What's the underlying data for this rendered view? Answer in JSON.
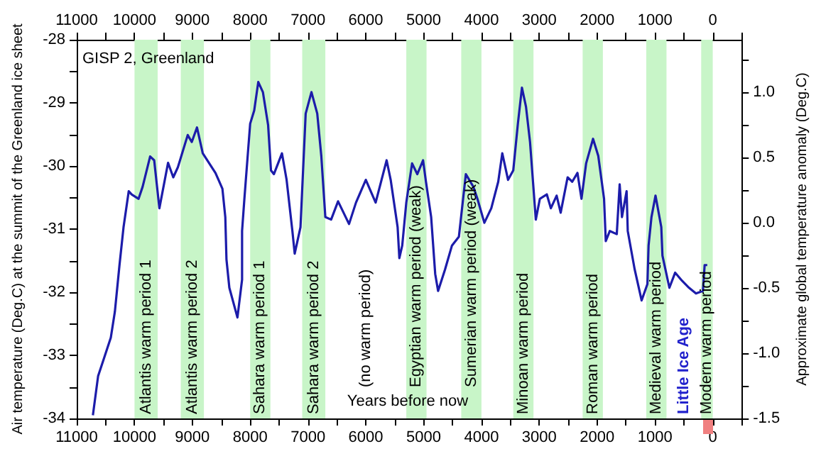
{
  "chart_data": {
    "type": "line",
    "xlabel": "Years before now",
    "ylabel": "Air temperature (Deg.C) at the summit of the Greenland ice sheet",
    "y2label": "Approximate global temperature anomaly (Deg.C)",
    "marker": "none",
    "color": "#1c1caa",
    "x": [
      10720,
      10630,
      10410,
      10340,
      10260,
      10190,
      10100,
      10050,
      9930,
      9860,
      9730,
      9660,
      9570,
      9420,
      9330,
      9250,
      9080,
      9010,
      8920,
      8820,
      8600,
      8480,
      8430,
      8410,
      8360,
      8220,
      8140,
      8140,
      8100,
      8000,
      7930,
      7860,
      7780,
      7690,
      7640,
      7590,
      7450,
      7370,
      7270,
      7230,
      7130,
      7040,
      6940,
      6840,
      6770,
      6700,
      6600,
      6480,
      6290,
      6170,
      6000,
      5830,
      5640,
      5570,
      5450,
      5420,
      5370,
      5300,
      5200,
      5110,
      5010,
      4960,
      4870,
      4800,
      4750,
      4630,
      4510,
      4390,
      4270,
      4140,
      4070,
      3950,
      3830,
      3710,
      3640,
      3540,
      3450,
      3370,
      3300,
      3230,
      3160,
      3060,
      2990,
      2870,
      2800,
      2700,
      2630,
      2510,
      2430,
      2340,
      2270,
      2190,
      2070,
      1980,
      1880,
      1850,
      1780,
      1660,
      1610,
      1570,
      1490,
      1470,
      1350,
      1230,
      1130,
      1110,
      1060,
      990,
      890,
      870,
      750,
      650,
      530,
      410,
      290,
      170,
      140,
      95
    ],
    "values": [
      -33.95,
      -33.33,
      -32.72,
      -32.31,
      -31.57,
      -30.97,
      -30.4,
      -30.45,
      -30.52,
      -30.33,
      -29.85,
      -29.91,
      -30.67,
      -29.95,
      -30.18,
      -30.02,
      -29.51,
      -29.62,
      -29.39,
      -29.8,
      -30.11,
      -30.36,
      -30.81,
      -31.48,
      -31.93,
      -32.4,
      -31.8,
      -31.03,
      -30.52,
      -29.33,
      -29.12,
      -28.67,
      -28.83,
      -29.35,
      -30.07,
      -30.13,
      -29.8,
      -30.22,
      -31.03,
      -31.39,
      -30.97,
      -29.17,
      -28.83,
      -29.17,
      -29.84,
      -30.81,
      -30.85,
      -30.56,
      -30.92,
      -30.58,
      -30.22,
      -30.58,
      -29.91,
      -30.22,
      -30.97,
      -31.46,
      -31.26,
      -30.58,
      -29.96,
      -30.13,
      -29.91,
      -30.25,
      -30.81,
      -31.71,
      -31.98,
      -31.64,
      -31.26,
      -31.12,
      -30.13,
      -30.33,
      -30.52,
      -30.9,
      -30.67,
      -30.25,
      -29.8,
      -30.22,
      -30.07,
      -29.33,
      -28.76,
      -29.06,
      -29.62,
      -30.85,
      -30.52,
      -30.45,
      -30.67,
      -30.47,
      -30.74,
      -30.18,
      -30.25,
      -30.11,
      -30.52,
      -29.96,
      -29.57,
      -29.84,
      -30.52,
      -31.19,
      -31.03,
      -31.08,
      -30.29,
      -30.81,
      -30.4,
      -31.03,
      -31.64,
      -32.13,
      -31.87,
      -31.26,
      -30.81,
      -30.47,
      -30.97,
      -31.42,
      -31.93,
      -31.69,
      -31.82,
      -31.93,
      -32.02,
      -31.98,
      -31.57,
      -31.57
    ],
    "xlim": [
      11000,
      -500
    ],
    "xticks": [
      11000,
      {
        "value": 10500,
        "label": null
      },
      10000,
      {
        "value": 9500,
        "label": null
      },
      9000,
      {
        "value": 8500,
        "label": null
      },
      8000,
      {
        "value": 7500,
        "label": null
      },
      7000,
      {
        "value": 6500,
        "label": null
      },
      6000,
      {
        "value": 5500,
        "label": null
      },
      5000,
      {
        "value": 4500,
        "label": null
      },
      4000,
      {
        "value": 3500,
        "label": null
      },
      3000,
      {
        "value": 2500,
        "label": null
      },
      2000,
      {
        "value": 1500,
        "label": null
      },
      1000,
      {
        "value": 500,
        "label": null
      },
      0,
      {
        "value": -500,
        "label": null
      }
    ],
    "x2lim": [
      11000,
      -500
    ],
    "x2ticks": [
      11000,
      {
        "value": 10500,
        "label": null
      },
      10000,
      {
        "value": 9500,
        "label": null
      },
      9000,
      {
        "value": 8500,
        "label": null
      },
      8000,
      {
        "value": 7500,
        "label": null
      },
      7000,
      {
        "value": 6500,
        "label": null
      },
      6000,
      {
        "value": 5500,
        "label": null
      },
      5000,
      {
        "value": 4500,
        "label": null
      },
      4000,
      {
        "value": 3500,
        "label": null
      },
      3000,
      {
        "value": 2500,
        "label": null
      },
      2000,
      {
        "value": 1500,
        "label": null
      },
      1000,
      {
        "value": 500,
        "label": null
      },
      0,
      {
        "value": -500,
        "label": null
      }
    ],
    "ylim": [
      -34,
      -28
    ],
    "yticks": [
      -34,
      {
        "value": -33.5,
        "label": null
      },
      -33,
      {
        "value": -32.5,
        "label": null
      },
      -32,
      {
        "value": -31.5,
        "label": null
      },
      -31,
      {
        "value": -30.5,
        "label": null
      },
      -30,
      {
        "value": -29.5,
        "label": null
      },
      -29,
      {
        "value": -28.5,
        "label": null
      },
      -28
    ],
    "y2lim": [
      -1.5,
      1.4
    ],
    "y2ticks": [
      {
        "value": -1.5,
        "label": "-1.5"
      },
      {
        "value": -1.25,
        "label": null
      },
      {
        "value": -1,
        "label": "-1.0"
      },
      {
        "value": -0.75,
        "label": null
      },
      {
        "value": -0.5,
        "label": "-0.5"
      },
      {
        "value": -0.25,
        "label": null
      },
      {
        "value": 0,
        "label": "0.0"
      },
      {
        "value": 0.25,
        "label": null
      },
      {
        "value": 0.5,
        "label": "0.5"
      },
      {
        "value": 0.75,
        "label": null
      },
      {
        "value": 1,
        "label": "1.0"
      },
      {
        "value": 1.25,
        "label": null
      }
    ],
    "bands": [
      {
        "axis": "x",
        "from": 10000,
        "to": 9600,
        "label": "Atlantis warm period 1",
        "color": "#c8f5c8"
      },
      {
        "axis": "x",
        "from": 9200,
        "to": 8800,
        "label": "Atlantis warm period 2",
        "color": "#c8f5c8"
      },
      {
        "axis": "x",
        "from": 8000,
        "to": 7650,
        "label": "Sahara warm period 1",
        "color": "#c8f5c8"
      },
      {
        "axis": "x",
        "from": 7100,
        "to": 6700,
        "label": "Sahara warm period 2",
        "color": "#c8f5c8"
      },
      {
        "axis": "x",
        "from": 5300,
        "to": 4950,
        "label": "Egyptian warm period (weak)",
        "color": "#c8f5c8"
      },
      {
        "axis": "x",
        "from": 4350,
        "to": 4000,
        "label": "Sumerian warm period (weak)",
        "color": "#c8f5c8"
      },
      {
        "axis": "x",
        "from": 3450,
        "to": 3100,
        "label": "Minoan warm period",
        "color": "#c8f5c8"
      },
      {
        "axis": "x",
        "from": 2250,
        "to": 1900,
        "label": "Roman warm period",
        "color": "#c8f5c8"
      },
      {
        "axis": "x",
        "from": 1150,
        "to": 800,
        "label": "Medieval warm period",
        "color": "#c8f5c8"
      },
      {
        "axis": "x",
        "from": 200,
        "to": 0,
        "label": "Modern warm period",
        "color": "#c8f5c8"
      }
    ],
    "annotations": [
      "GISP 2, Greenland",
      "(no warm period)",
      "Little Ice Age"
    ]
  }
}
